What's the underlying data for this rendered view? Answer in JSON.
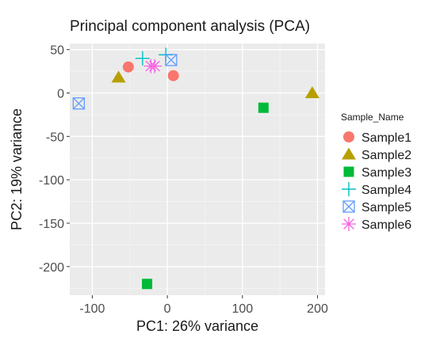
{
  "chart_data": {
    "type": "scatter",
    "title": "Principal component analysis (PCA)",
    "xlabel": "PC1: 26% variance",
    "ylabel": "PC2: 19% variance",
    "xlim": [
      -130,
      210
    ],
    "ylim": [
      -233,
      57
    ],
    "x_ticks": [
      -100,
      0,
      100,
      200
    ],
    "y_ticks": [
      50,
      0,
      -50,
      -100,
      -150,
      -200
    ],
    "x_tick_labels": [
      "-100",
      "0",
      "100",
      "200"
    ],
    "y_tick_labels": [
      "50",
      "0",
      "-50",
      "-100",
      "-150",
      "-200"
    ],
    "grid": true,
    "legend_title": "Sample_Name",
    "legend_position": "right",
    "series": [
      {
        "name": "Sample1",
        "color": "#F8766D",
        "shape": "circle",
        "points": [
          {
            "x": -52,
            "y": 30
          },
          {
            "x": 8,
            "y": 20
          }
        ]
      },
      {
        "name": "Sample2",
        "color": "#B79F00",
        "shape": "triangle",
        "points": [
          {
            "x": -65,
            "y": 18
          },
          {
            "x": 193,
            "y": 0
          }
        ]
      },
      {
        "name": "Sample3",
        "color": "#00BA38",
        "shape": "square",
        "points": [
          {
            "x": 128,
            "y": -17
          },
          {
            "x": -27,
            "y": -220
          }
        ]
      },
      {
        "name": "Sample4",
        "color": "#00BFC4",
        "shape": "plus",
        "points": [
          {
            "x": -33,
            "y": 40
          },
          {
            "x": -2,
            "y": 44
          }
        ]
      },
      {
        "name": "Sample5",
        "color": "#619CFF",
        "shape": "square-cross",
        "points": [
          {
            "x": -118,
            "y": -12
          },
          {
            "x": 5,
            "y": 38
          }
        ]
      },
      {
        "name": "Sample6",
        "color": "#F564E3",
        "shape": "asterisk",
        "points": [
          {
            "x": -22,
            "y": 31
          },
          {
            "x": -17,
            "y": 31
          }
        ]
      }
    ]
  }
}
